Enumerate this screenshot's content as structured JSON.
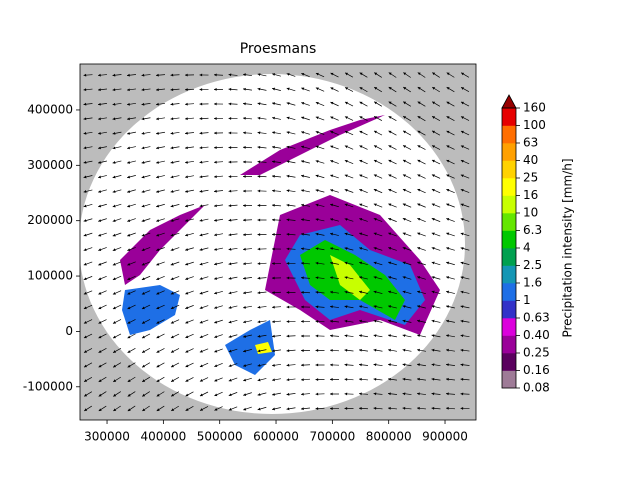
{
  "chart_data": {
    "type": "map",
    "title": "Proesmans",
    "xlim": [
      252000,
      955000
    ],
    "ylim": [
      -160000,
      483000
    ],
    "xticks": [
      300000,
      400000,
      500000,
      600000,
      700000,
      800000,
      900000
    ],
    "yticks": [
      -100000,
      0,
      100000,
      200000,
      300000,
      400000
    ],
    "colorbar": {
      "label": "Precipitation intensity [mm/h]",
      "ticks": [
        0.08,
        0.16,
        0.25,
        {
          "value": 0.4,
          "label": "0.40"
        },
        0.63,
        1,
        1.6,
        2.5,
        4,
        6.3,
        10,
        16,
        25,
        40,
        63,
        100,
        160
      ],
      "colors": [
        "#9e7b97",
        "#5a005e",
        "#9a0099",
        "#dc00dc",
        "#3232c8",
        "#1e6fe6",
        "#1496b4",
        "#00a050",
        "#00c800",
        "#64e600",
        "#c8ff00",
        "#ffff00",
        "#ffd200",
        "#ffa000",
        "#ff6e00",
        "#e60000"
      ],
      "extend_color": "#960000"
    }
  }
}
